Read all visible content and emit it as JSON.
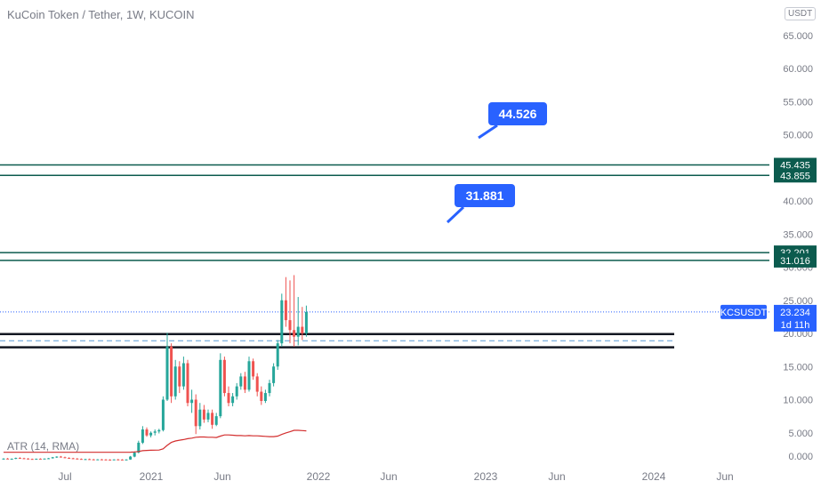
{
  "header": {
    "title": "KuCoin Token / Tether, 1W, KUCOIN",
    "currency": "USDT"
  },
  "indicator": {
    "label": "ATR (14, RMA)"
  },
  "colors": {
    "up": "#26a69a",
    "down": "#ef5350",
    "level_line": "#0c5b4e",
    "price_line": "#2962ff",
    "callout": "#2962ff",
    "atr": "#d32f2f",
    "support": "#131722"
  },
  "chart_data": {
    "type": "candlestick",
    "symbol": "KCSUSDT",
    "interval": "1W",
    "y_ticks": [
      "0.000",
      "5.000",
      "10.000",
      "15.000",
      "20.000",
      "25.000",
      "30.000",
      "35.000",
      "40.000",
      "45.000",
      "50.000",
      "55.000",
      "60.000",
      "65.000"
    ],
    "x_ticks": [
      "Jul",
      "2021",
      "Jun",
      "2022",
      "Jun",
      "2023",
      "Jun",
      "2024",
      "Jun"
    ],
    "ylim": [
      0,
      65
    ],
    "last_price": {
      "symbol": "KCSUSDT",
      "price": "23.234",
      "countdown": "1d 11h"
    },
    "levels": [
      {
        "price": "45.435"
      },
      {
        "price": "43.855"
      },
      {
        "price": "32.201"
      },
      {
        "price": "31.016"
      }
    ],
    "callouts": [
      "44.526",
      "31.881"
    ],
    "support_zone": {
      "top": 19.9,
      "bottom": 17.9,
      "dashed": 18.9
    },
    "candles": [
      {
        "o": 1.05,
        "h": 1.15,
        "l": 0.95,
        "c": 1.1
      },
      {
        "o": 1.1,
        "h": 1.2,
        "l": 1.0,
        "c": 1.05
      },
      {
        "o": 1.05,
        "h": 1.12,
        "l": 0.98,
        "c": 1.08
      },
      {
        "o": 1.08,
        "h": 1.25,
        "l": 1.02,
        "c": 1.2
      },
      {
        "o": 1.2,
        "h": 1.3,
        "l": 1.1,
        "c": 1.15
      },
      {
        "o": 1.15,
        "h": 1.22,
        "l": 1.05,
        "c": 1.1
      },
      {
        "o": 1.1,
        "h": 1.18,
        "l": 1.0,
        "c": 1.05
      },
      {
        "o": 1.05,
        "h": 1.1,
        "l": 0.95,
        "c": 1.0
      },
      {
        "o": 1.0,
        "h": 1.1,
        "l": 0.95,
        "c": 1.08
      },
      {
        "o": 1.08,
        "h": 1.15,
        "l": 1.0,
        "c": 1.05
      },
      {
        "o": 1.05,
        "h": 1.12,
        "l": 1.0,
        "c": 1.1
      },
      {
        "o": 1.1,
        "h": 1.2,
        "l": 1.05,
        "c": 1.15
      },
      {
        "o": 1.15,
        "h": 1.35,
        "l": 1.1,
        "c": 1.3
      },
      {
        "o": 1.3,
        "h": 1.45,
        "l": 1.2,
        "c": 1.4
      },
      {
        "o": 1.4,
        "h": 1.5,
        "l": 1.25,
        "c": 1.3
      },
      {
        "o": 1.3,
        "h": 1.4,
        "l": 1.15,
        "c": 1.2
      },
      {
        "o": 1.2,
        "h": 1.3,
        "l": 1.1,
        "c": 1.15
      },
      {
        "o": 1.15,
        "h": 1.22,
        "l": 1.05,
        "c": 1.1
      },
      {
        "o": 1.1,
        "h": 1.18,
        "l": 1.0,
        "c": 1.05
      },
      {
        "o": 1.05,
        "h": 1.12,
        "l": 0.98,
        "c": 1.0
      },
      {
        "o": 1.0,
        "h": 1.08,
        "l": 0.95,
        "c": 1.02
      },
      {
        "o": 1.02,
        "h": 1.1,
        "l": 0.96,
        "c": 0.98
      },
      {
        "o": 0.98,
        "h": 1.05,
        "l": 0.92,
        "c": 0.95
      },
      {
        "o": 0.95,
        "h": 1.02,
        "l": 0.9,
        "c": 0.98
      },
      {
        "o": 0.98,
        "h": 1.05,
        "l": 0.92,
        "c": 0.96
      },
      {
        "o": 0.96,
        "h": 1.02,
        "l": 0.9,
        "c": 0.94
      },
      {
        "o": 0.94,
        "h": 1.0,
        "l": 0.88,
        "c": 0.92
      },
      {
        "o": 0.92,
        "h": 1.0,
        "l": 0.88,
        "c": 0.97
      },
      {
        "o": 0.97,
        "h": 1.05,
        "l": 0.92,
        "c": 0.95
      },
      {
        "o": 0.95,
        "h": 1.02,
        "l": 0.9,
        "c": 0.93
      },
      {
        "o": 0.93,
        "h": 1.0,
        "l": 0.88,
        "c": 0.96
      },
      {
        "o": 0.96,
        "h": 1.5,
        "l": 0.92,
        "c": 1.4
      },
      {
        "o": 1.4,
        "h": 2.2,
        "l": 1.3,
        "c": 2.0
      },
      {
        "o": 2.0,
        "h": 3.8,
        "l": 1.9,
        "c": 3.5
      },
      {
        "o": 3.5,
        "h": 6.0,
        "l": 3.3,
        "c": 5.5
      },
      {
        "o": 5.5,
        "h": 5.8,
        "l": 4.4,
        "c": 4.6
      },
      {
        "o": 4.6,
        "h": 5.2,
        "l": 4.3,
        "c": 5.0
      },
      {
        "o": 5.0,
        "h": 5.5,
        "l": 4.6,
        "c": 5.2
      },
      {
        "o": 5.2,
        "h": 5.6,
        "l": 4.9,
        "c": 5.4
      },
      {
        "o": 5.4,
        "h": 10.5,
        "l": 5.2,
        "c": 10.0
      },
      {
        "o": 10.0,
        "h": 20.1,
        "l": 9.8,
        "c": 18.0
      },
      {
        "o": 18.0,
        "h": 18.5,
        "l": 9.5,
        "c": 10.5
      },
      {
        "o": 10.5,
        "h": 16.0,
        "l": 10.0,
        "c": 15.0
      },
      {
        "o": 15.0,
        "h": 15.8,
        "l": 11.0,
        "c": 12.0
      },
      {
        "o": 12.0,
        "h": 16.5,
        "l": 11.5,
        "c": 15.5
      },
      {
        "o": 15.5,
        "h": 16.0,
        "l": 9.0,
        "c": 9.5
      },
      {
        "o": 9.5,
        "h": 11.5,
        "l": 8.0,
        "c": 10.0
      },
      {
        "o": 10.0,
        "h": 10.8,
        "l": 4.8,
        "c": 6.0
      },
      {
        "o": 6.0,
        "h": 9.5,
        "l": 5.5,
        "c": 8.5
      },
      {
        "o": 8.5,
        "h": 9.2,
        "l": 6.5,
        "c": 7.0
      },
      {
        "o": 7.0,
        "h": 8.5,
        "l": 6.6,
        "c": 8.0
      },
      {
        "o": 8.0,
        "h": 8.5,
        "l": 5.6,
        "c": 6.2
      },
      {
        "o": 6.2,
        "h": 8.0,
        "l": 6.0,
        "c": 7.5
      },
      {
        "o": 7.5,
        "h": 17.0,
        "l": 7.2,
        "c": 16.0
      },
      {
        "o": 16.0,
        "h": 16.5,
        "l": 10.5,
        "c": 11.0
      },
      {
        "o": 11.0,
        "h": 12.0,
        "l": 9.0,
        "c": 9.5
      },
      {
        "o": 9.5,
        "h": 11.0,
        "l": 9.0,
        "c": 10.5
      },
      {
        "o": 10.5,
        "h": 12.5,
        "l": 10.0,
        "c": 12.0
      },
      {
        "o": 12.0,
        "h": 14.0,
        "l": 11.5,
        "c": 13.5
      },
      {
        "o": 13.5,
        "h": 14.2,
        "l": 11.0,
        "c": 11.5
      },
      {
        "o": 11.5,
        "h": 16.5,
        "l": 11.2,
        "c": 15.8
      },
      {
        "o": 15.8,
        "h": 16.2,
        "l": 13.0,
        "c": 13.5
      },
      {
        "o": 13.5,
        "h": 14.0,
        "l": 10.5,
        "c": 11.2
      },
      {
        "o": 11.2,
        "h": 12.0,
        "l": 9.2,
        "c": 9.8
      },
      {
        "o": 9.8,
        "h": 11.5,
        "l": 9.5,
        "c": 11.0
      },
      {
        "o": 11.0,
        "h": 13.0,
        "l": 10.5,
        "c": 12.5
      },
      {
        "o": 12.5,
        "h": 15.5,
        "l": 12.0,
        "c": 15.0
      },
      {
        "o": 15.0,
        "h": 19.0,
        "l": 14.5,
        "c": 18.5
      },
      {
        "o": 18.5,
        "h": 26.0,
        "l": 18.0,
        "c": 25.0
      },
      {
        "o": 25.0,
        "h": 28.5,
        "l": 21.0,
        "c": 22.0
      },
      {
        "o": 22.0,
        "h": 28.0,
        "l": 18.5,
        "c": 20.5
      },
      {
        "o": 20.5,
        "h": 28.8,
        "l": 18.0,
        "c": 19.5
      },
      {
        "o": 19.5,
        "h": 25.5,
        "l": 18.2,
        "c": 21.0
      },
      {
        "o": 21.0,
        "h": 24.0,
        "l": 19.0,
        "c": 20.0
      },
      {
        "o": 20.0,
        "h": 24.2,
        "l": 19.5,
        "c": 23.23
      }
    ],
    "atr": [
      0.2,
      0.2,
      0.2,
      0.2,
      0.2,
      0.2,
      0.2,
      0.2,
      0.2,
      0.2,
      0.2,
      0.2,
      0.2,
      0.2,
      0.2,
      0.2,
      0.2,
      0.2,
      0.2,
      0.2,
      0.2,
      0.2,
      0.2,
      0.2,
      0.2,
      0.2,
      0.2,
      0.2,
      0.2,
      0.2,
      0.2,
      0.22,
      0.26,
      0.34,
      0.48,
      0.52,
      0.55,
      0.57,
      0.58,
      0.8,
      1.4,
      1.9,
      2.15,
      2.3,
      2.4,
      2.55,
      2.65,
      2.8,
      2.85,
      2.85,
      2.8,
      2.8,
      2.75,
      3.0,
      3.2,
      3.2,
      3.15,
      3.1,
      3.1,
      3.05,
      3.1,
      3.05,
      3.05,
      3.0,
      2.95,
      2.9,
      2.9,
      3.0,
      3.3,
      3.55,
      3.75,
      4.0,
      4.0,
      3.95,
      3.9
    ]
  }
}
